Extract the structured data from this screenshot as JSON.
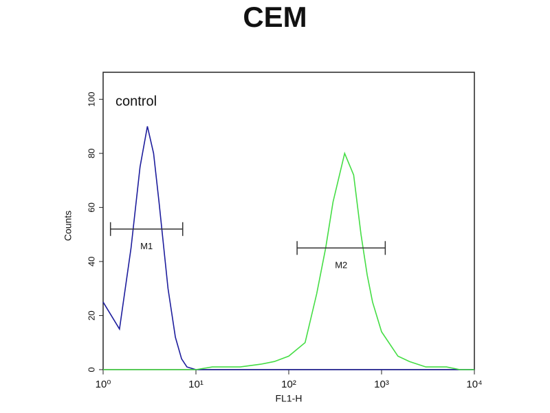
{
  "chart_data": {
    "type": "line",
    "title": "CEM",
    "x_label": "FL1-H",
    "y_label": "Counts",
    "x_scale": "log",
    "xlim": [
      1,
      10000
    ],
    "xticks": [
      {
        "value": 1,
        "label": "10⁰"
      },
      {
        "value": 10,
        "label": "10¹"
      },
      {
        "value": 100,
        "label": "10²"
      },
      {
        "value": 1000,
        "label": "10³"
      },
      {
        "value": 10000,
        "label": "10⁴"
      }
    ],
    "ylim": [
      0,
      110
    ],
    "yticks": [
      0,
      20,
      40,
      60,
      80,
      100
    ],
    "x": [
      1,
      1.5,
      2,
      2.5,
      3,
      3.5,
      4,
      5,
      6,
      7,
      8,
      10,
      15,
      20,
      30,
      50,
      70,
      100,
      150,
      200,
      250,
      300,
      400,
      500,
      600,
      700,
      800,
      1000,
      1500,
      2000,
      3000,
      5000,
      7000,
      10000
    ],
    "series": [
      {
        "name": "control",
        "color": "#1c1c9c",
        "values": [
          25,
          15,
          45,
          75,
          90,
          80,
          62,
          30,
          12,
          4,
          1,
          0,
          0,
          0,
          0,
          0,
          0,
          0,
          0,
          0,
          0,
          0,
          0,
          0,
          0,
          0,
          0,
          0,
          0,
          0,
          0,
          0,
          0,
          0
        ]
      },
      {
        "color": "#44dd44",
        "values": [
          0,
          0,
          0,
          0,
          0,
          0,
          0,
          0,
          0,
          0,
          0,
          0,
          1,
          1,
          1,
          2,
          3,
          5,
          10,
          28,
          45,
          62,
          80,
          72,
          50,
          35,
          25,
          14,
          5,
          3,
          1,
          1,
          0,
          0
        ]
      }
    ],
    "markers": [
      {
        "label": "M1",
        "x": [
          1.2,
          7.2
        ],
        "y": 52
      },
      {
        "label": "M2",
        "x": [
          123,
          1096
        ],
        "y": 45
      }
    ]
  }
}
